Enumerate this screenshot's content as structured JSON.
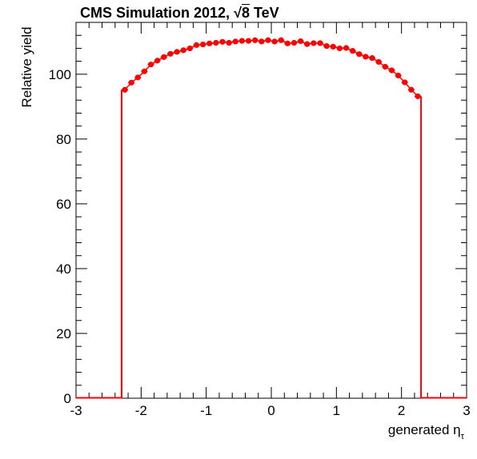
{
  "colors": {
    "series": "#ff0000",
    "axis": "#000000",
    "background": "#ffffff"
  },
  "title": {
    "prefix": "CMS Simulation 2012, ",
    "sqrt_symbol": "√",
    "energy": "8",
    "unit": " TeV"
  },
  "chart_data": {
    "type": "scatter",
    "title": "CMS Simulation 2012, √8 TeV",
    "xlabel": "generated η",
    "xlabel_main": "generated η",
    "xlabel_sub": "τ",
    "ylabel": "Relative yield",
    "xlim": [
      -3,
      3
    ],
    "ylim": [
      0,
      116
    ],
    "x_ticks": [
      -3,
      -2,
      -1,
      0,
      1,
      2,
      3
    ],
    "x_tick_labels": [
      "-3",
      "-2",
      "-1",
      "0",
      "1",
      "2",
      "3"
    ],
    "y_ticks": [
      0,
      20,
      40,
      60,
      80,
      100
    ],
    "y_tick_labels": [
      "0",
      "20",
      "40",
      "60",
      "80",
      "100"
    ],
    "grid": false,
    "histogram_edges": [
      -2.3,
      2.3
    ],
    "series": [
      {
        "x": [
          -2.25,
          -2.15,
          -2.05,
          -1.95,
          -1.85,
          -1.75,
          -1.65,
          -1.55,
          -1.45,
          -1.35,
          -1.25,
          -1.15,
          -1.05,
          -0.95,
          -0.85,
          -0.75,
          -0.65,
          -0.55,
          -0.45,
          -0.35,
          -0.25,
          -0.15,
          -0.05,
          0.05,
          0.15,
          0.25,
          0.35,
          0.45,
          0.55,
          0.65,
          0.75,
          0.85,
          0.95,
          1.05,
          1.15,
          1.25,
          1.35,
          1.45,
          1.55,
          1.65,
          1.75,
          1.85,
          1.95,
          2.05,
          2.15,
          2.25
        ],
        "values": [
          95.2,
          97.4,
          99.0,
          100.9,
          103.0,
          104.2,
          105.3,
          106.3,
          106.9,
          107.4,
          108.0,
          109.0,
          109.2,
          109.5,
          109.7,
          110.0,
          109.7,
          110.1,
          110.3,
          110.3,
          110.5,
          110.1,
          110.5,
          110.1,
          110.5,
          109.5,
          109.7,
          110.2,
          109.3,
          109.6,
          109.6,
          108.7,
          108.5,
          108.0,
          108.1,
          107.2,
          106.2,
          105.4,
          105.0,
          103.8,
          102.3,
          101.2,
          99.6,
          97.5,
          95.2,
          93.2
        ]
      }
    ]
  }
}
